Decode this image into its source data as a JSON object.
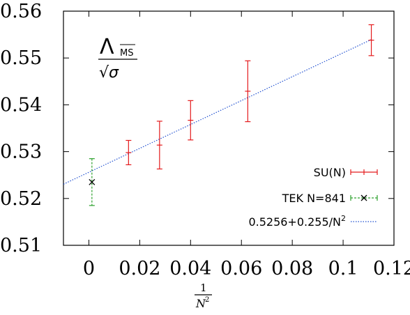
{
  "chart_data": {
    "type": "scatter",
    "x_range": [
      -0.01,
      0.12
    ],
    "y_range": [
      0.51,
      0.56
    ],
    "x_ticks": [
      "0",
      "0.02",
      "0.04",
      "0.06",
      "0.08",
      "0.1",
      "0.12"
    ],
    "x_tick_values": [
      0,
      0.02,
      0.04,
      0.06,
      0.08,
      0.1,
      0.12
    ],
    "y_ticks": [
      "0.51",
      "0.52",
      "0.53",
      "0.54",
      "0.55",
      "0.56"
    ],
    "y_tick_values": [
      0.51,
      0.52,
      0.53,
      0.54,
      0.55,
      0.56
    ],
    "xlabel": {
      "numerator": "1",
      "denominator": "N",
      "exponent": "2"
    },
    "ylabel": {
      "lambda": "Λ",
      "subscript": "MS",
      "denominator": "√σ"
    },
    "series": [
      {
        "name": "SU(N)",
        "color": "#e41a1c",
        "marker": "plus-errorbar",
        "points": [
          {
            "x": 0.0156,
            "y": 0.5298,
            "err": 0.0026
          },
          {
            "x": 0.0278,
            "y": 0.5314,
            "err": 0.0051
          },
          {
            "x": 0.04,
            "y": 0.5367,
            "err": 0.0042
          },
          {
            "x": 0.0625,
            "y": 0.5429,
            "err": 0.0065
          },
          {
            "x": 0.1111,
            "y": 0.5538,
            "err": 0.0033
          }
        ]
      },
      {
        "name": "TEK N=841",
        "color": "#2ca02c",
        "marker": "cross-errorbar",
        "points": [
          {
            "x": 0.0012,
            "y": 0.5235,
            "err": 0.005
          }
        ]
      },
      {
        "name": "0.5256+0.255/N",
        "name_exponent": "2",
        "color": "#1f4fd0",
        "style": "dotted-line",
        "intercept": 0.5256,
        "slope": 0.255
      }
    ],
    "legend_position": "bottom-right"
  }
}
